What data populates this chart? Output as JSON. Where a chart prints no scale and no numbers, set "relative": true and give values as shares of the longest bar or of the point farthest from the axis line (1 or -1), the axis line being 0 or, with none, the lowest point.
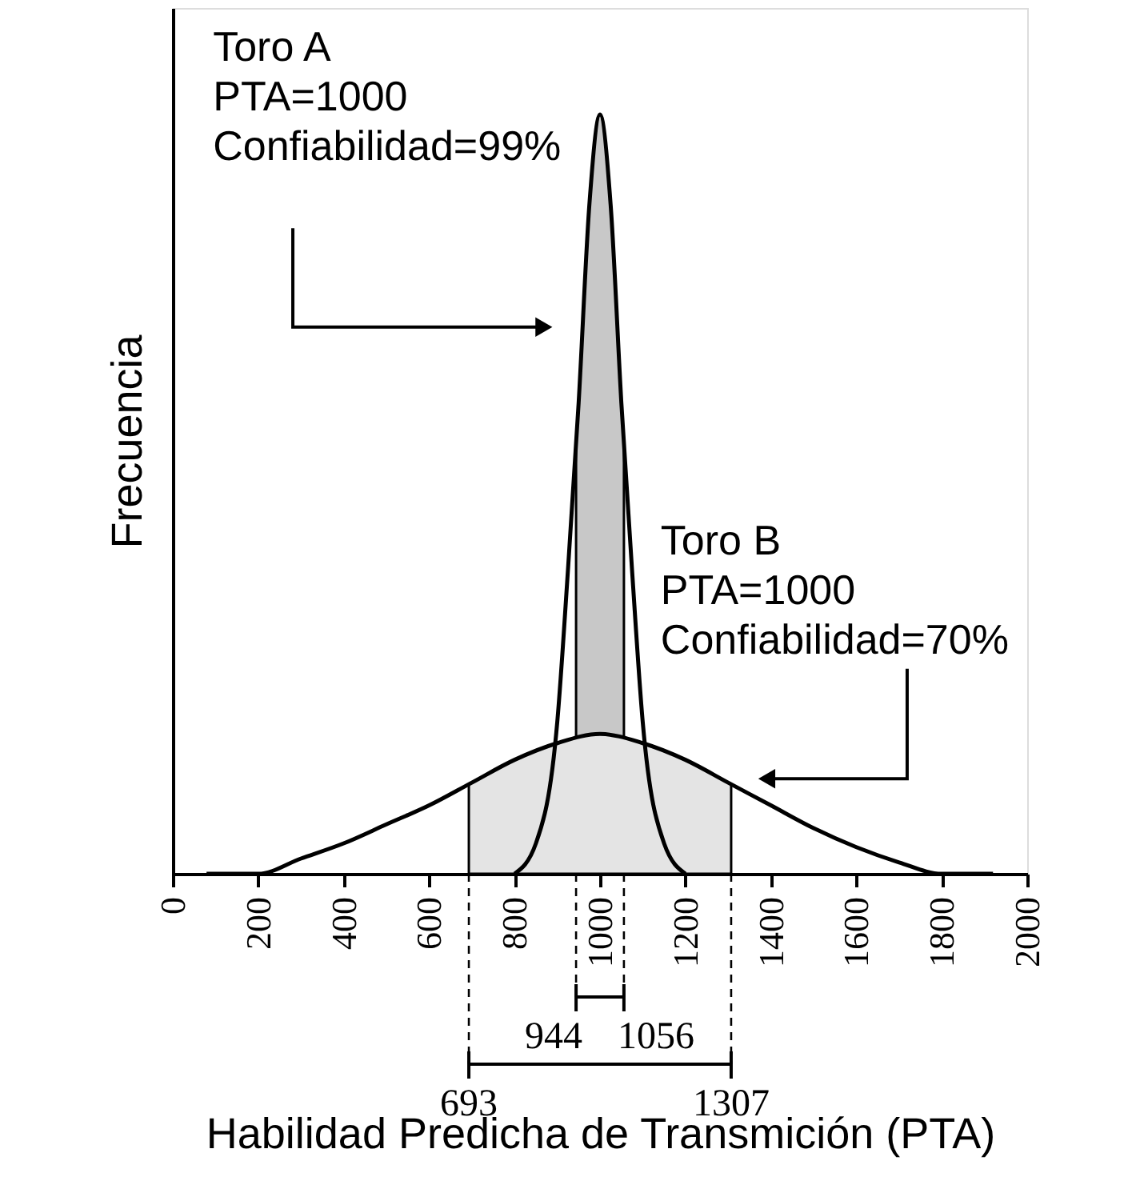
{
  "chart_data": {
    "type": "line",
    "relative": true,
    "xlabel": "Habilidad Predicha de Transmición (PTA)",
    "ylabel": "Frecuencia",
    "xlim": [
      0,
      2000
    ],
    "xticks": [
      0,
      200,
      400,
      600,
      800,
      1000,
      1200,
      1400,
      1600,
      1800,
      2000
    ],
    "grid": false,
    "marker": "none",
    "line_style": "solid",
    "series": [
      {
        "type": "area",
        "color": "#c8c8c8",
        "x": [
          944,
          950,
          975,
          1000,
          1025,
          1050,
          1056
        ],
        "values": [
          0.57,
          0.62,
          0.88,
          1,
          0.88,
          0.62,
          0.57
        ]
      },
      {
        "type": "area",
        "color": "#e4e4e4",
        "x": [
          693,
          700,
          800,
          900,
          1000,
          1100,
          1200,
          1300,
          1307
        ],
        "values": [
          0.118,
          0.12,
          0.15,
          0.172,
          0.184,
          0.172,
          0.15,
          0.12,
          0.118
        ]
      },
      {
        "color": "#000000",
        "x": [
          800,
          850,
          900,
          925,
          950,
          975,
          1000,
          1025,
          1050,
          1075,
          1100,
          1150,
          1200
        ],
        "values": [
          0,
          0.04,
          0.2,
          0.4,
          0.62,
          0.88,
          1,
          0.88,
          0.62,
          0.4,
          0.2,
          0.04,
          0
        ]
      },
      {
        "color": "#000000",
        "x": [
          79,
          200,
          300,
          400,
          500,
          600,
          700,
          800,
          900,
          1000,
          1100,
          1200,
          1300,
          1400,
          1500,
          1600,
          1700,
          1800,
          1920
        ],
        "values": [
          0,
          0,
          0.02,
          0.04,
          0.065,
          0.09,
          0.12,
          0.15,
          0.172,
          0.184,
          0.172,
          0.15,
          0.12,
          0.09,
          0.06,
          0.035,
          0.015,
          0,
          0
        ]
      }
    ],
    "annotations": [
      "Toro A\nPTA=1000\nConfiabilidad=99%",
      "Toro B\nPTA=1000\nConfiabilidad=70%",
      "944",
      "1056",
      "693",
      "1307"
    ]
  }
}
